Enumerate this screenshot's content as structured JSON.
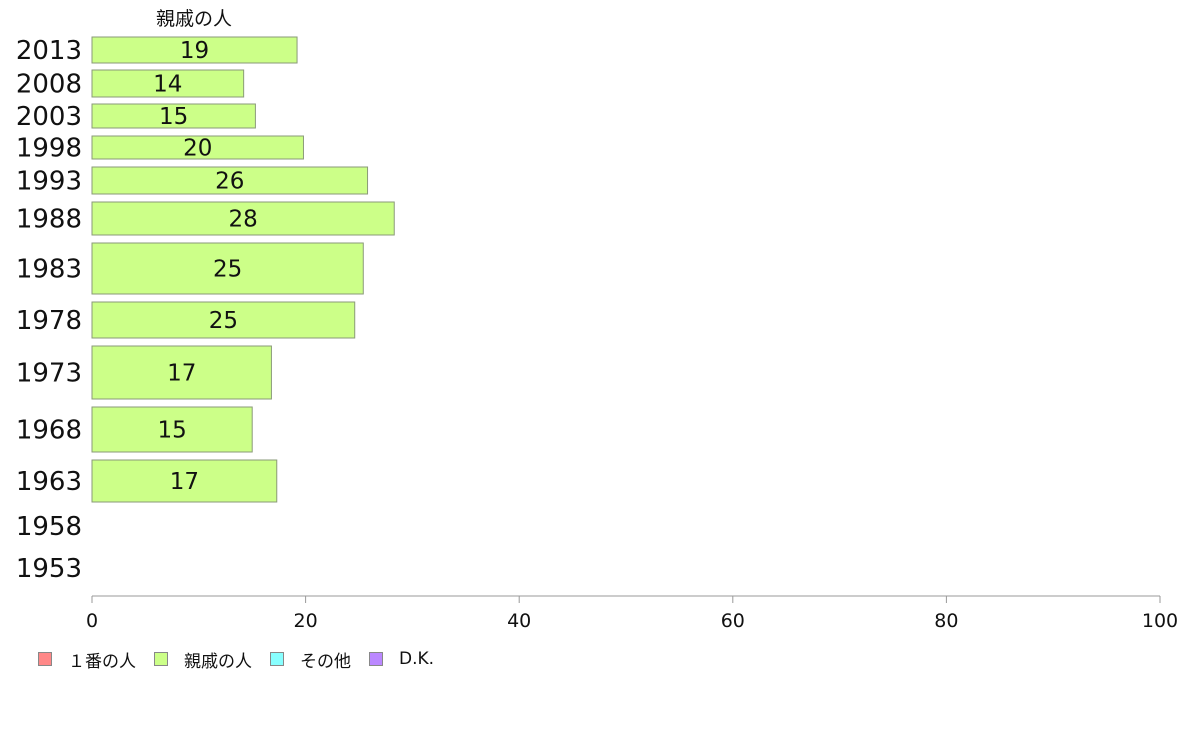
{
  "chart_data": {
    "type": "bar",
    "orientation": "horizontal",
    "title": "親戚の人",
    "categories": [
      "2013",
      "2008",
      "2003",
      "1998",
      "1993",
      "1988",
      "1983",
      "1978",
      "1973",
      "1968",
      "1963",
      "1958",
      "1953"
    ],
    "series": [
      {
        "name": "親戚の人",
        "color": "#ccff88",
        "values": [
          19.2,
          14.2,
          15.3,
          19.8,
          25.8,
          28.3,
          25.4,
          24.6,
          16.8,
          15.0,
          17.3,
          null,
          null
        ],
        "labels": [
          "19",
          "14",
          "15",
          "20",
          "26",
          "28",
          "25",
          "25",
          "17",
          "15",
          "17",
          "",
          ""
        ]
      }
    ],
    "xlim": [
      0,
      100
    ],
    "xticks": [
      "0",
      "20",
      "40",
      "60",
      "80",
      "100"
    ],
    "legend": {
      "position": "bottom-left",
      "items": [
        {
          "label": "１番の人",
          "color": "#ff8888"
        },
        {
          "label": "親戚の人",
          "color": "#ccff88"
        },
        {
          "label": "その他",
          "color": "#88ffff"
        },
        {
          "label": "D.K.",
          "color": "#bb88ff"
        }
      ]
    }
  }
}
